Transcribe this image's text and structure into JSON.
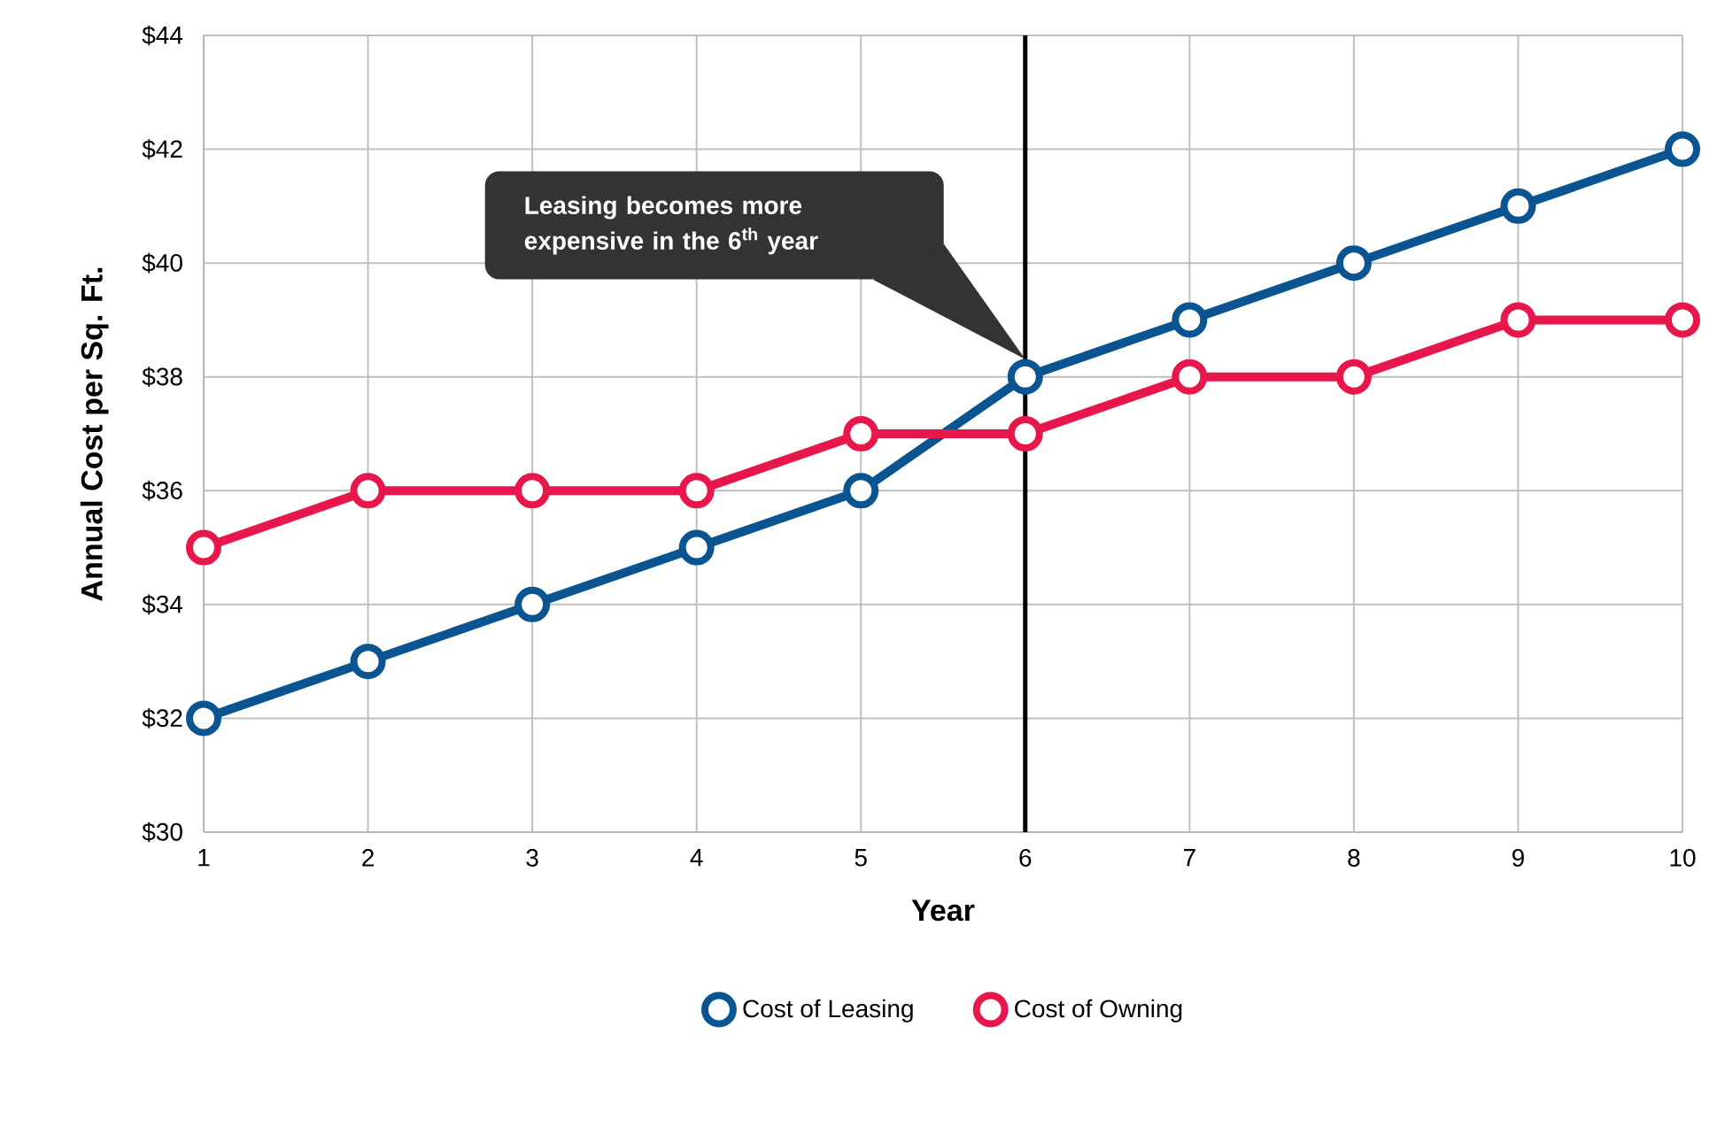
{
  "chart_data": {
    "type": "line",
    "xlabel": "Year",
    "ylabel": "Annual Cost per Sq. Ft.",
    "x": [
      1,
      2,
      3,
      4,
      5,
      6,
      7,
      8,
      9,
      10
    ],
    "series": [
      {
        "name": "Cost of Leasing",
        "color": "#0a5591",
        "values": [
          32,
          33,
          34,
          35,
          36,
          38,
          39,
          40,
          41,
          42
        ]
      },
      {
        "name": "Cost of Owning",
        "color": "#e8174b",
        "values": [
          35,
          36,
          36,
          36,
          37,
          37,
          38,
          38,
          39,
          39
        ]
      }
    ],
    "xlim": [
      1,
      10
    ],
    "xticks": [
      1,
      2,
      3,
      4,
      5,
      6,
      7,
      8,
      9,
      10
    ],
    "ylim": [
      30,
      44
    ],
    "yticks": [
      {
        "value": 30,
        "label": "$30"
      },
      {
        "value": 32,
        "label": "$32"
      },
      {
        "value": 34,
        "label": "$34"
      },
      {
        "value": 36,
        "label": "$36"
      },
      {
        "value": 38,
        "label": "$38"
      },
      {
        "value": 40,
        "label": "$40"
      },
      {
        "value": 42,
        "label": "$42"
      },
      {
        "value": 44,
        "label": "$44"
      }
    ],
    "grid": true,
    "legend": "bottom",
    "marker": "circle",
    "line_style": "solid",
    "ref_lines": [
      {
        "axis": "x",
        "value": 6,
        "color": "#000000"
      }
    ],
    "annotations": [
      "Leasing becomes more expensive in the 6$^{th}$ year"
    ]
  }
}
